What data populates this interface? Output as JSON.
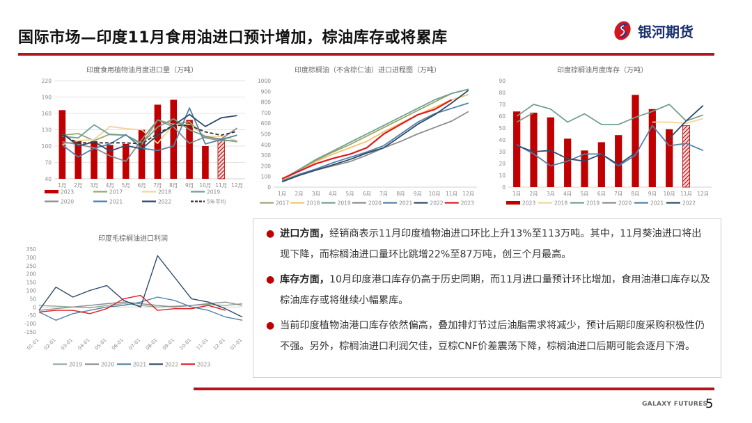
{
  "header": {
    "title": "国际市场—印度11月食用油进口预计增加，棕油库存或将累库",
    "brand_name": "银河期货",
    "accent_color": "#b3141f"
  },
  "footer": {
    "brand": "GALAXY FUTURES",
    "page_number": "5"
  },
  "text_panel": {
    "bullets": [
      {
        "bold": "进口方面，",
        "text": "经销商表示11月印度植物油进口环比上升13%至113万吨。其中，11月葵油进口将出现下降，而棕榈油进口量环比跳增22%至87万吨，创三个月最高。"
      },
      {
        "bold": "库存方面，",
        "text": "10月印度港口库存仍高于历史同期，而11月进口量预计环比增加，食用油港口库存以及棕油库存或将继续小幅累库。"
      },
      {
        "bold": "",
        "text": "当前印度植物油港口库存依然偏高，叠加排灯节过后油脂需求将减少，预计后期印度采购积极性仍不强。另外，棕榈油进口利润欠佳，豆棕CNF价差震荡下降，棕榈油进口后期可能会逐月下滑。"
      }
    ]
  },
  "chart_data": [
    {
      "id": "chart1",
      "type": "bar+line",
      "title": "印度食用植物油月度进口量（万吨）",
      "categories": [
        "1月",
        "2月",
        "3月",
        "4月",
        "5月",
        "6月",
        "7月",
        "8月",
        "9月",
        "10月",
        "11月",
        "12月"
      ],
      "ylim": [
        40,
        220
      ],
      "yticks": [
        40,
        70,
        100,
        130,
        160,
        190,
        220
      ],
      "grid": true,
      "legend_position": "bottom",
      "bars": {
        "name": "2023",
        "values": [
          166,
          110,
          109,
          102,
          104,
          130,
          176,
          185,
          148,
          100,
          113,
          null
        ],
        "forecast_index": 10,
        "color": "#c00000"
      },
      "series": [
        {
          "name": "2017",
          "color": "#9aa66e",
          "values": [
            120,
            123,
            110,
            122,
            120,
            103,
            148,
            140,
            145,
            115,
            110,
            110
          ]
        },
        {
          "name": "2018",
          "color": "#f2d49a",
          "values": [
            103,
            110,
            112,
            136,
            132,
            130,
            105,
            140,
            140,
            118,
            118,
            110
          ]
        },
        {
          "name": "2019",
          "color": "#6fa08f",
          "values": [
            118,
            115,
            139,
            121,
            120,
            105,
            135,
            150,
            130,
            118,
            112,
            108
          ]
        },
        {
          "name": "2020",
          "color": "#8c8c8c",
          "values": [
            108,
            103,
            97,
            82,
            72,
            112,
            148,
            135,
            105,
            117,
            113,
            133
          ]
        },
        {
          "name": "2021",
          "color": "#4f81a8",
          "values": [
            102,
            80,
            96,
            104,
            121,
            96,
            92,
            100,
            170,
            104,
            112,
            120
          ]
        },
        {
          "name": "2022",
          "color": "#2e4a6b",
          "values": [
            124,
            100,
            108,
            91,
            101,
            95,
            120,
            138,
            158,
            136,
            152,
            156
          ]
        },
        {
          "name": "5年平均",
          "color": "#333333",
          "dashed": true,
          "values": [
            120,
            106,
            106,
            106,
            106,
            104,
            123,
            138,
            138,
            126,
            120,
            127
          ]
        }
      ]
    },
    {
      "id": "chart2",
      "type": "line",
      "title": "印度棕榈油（不含棕仁油）进口进程图（万吨）",
      "categories": [
        "1月",
        "2月",
        "3月",
        "4月",
        "5月",
        "6月",
        "7月",
        "8月",
        "9月",
        "10月",
        "11月",
        "12月"
      ],
      "ylim": [
        0,
        1000
      ],
      "yticks": [
        0,
        100,
        200,
        300,
        400,
        500,
        600,
        700,
        800,
        900,
        1000
      ],
      "grid": false,
      "legend_position": "bottom",
      "series": [
        {
          "name": "2017",
          "color": "#9aa66e",
          "values": [
            70,
            160,
            250,
            330,
            400,
            480,
            560,
            640,
            720,
            800,
            880,
            920
          ]
        },
        {
          "name": "2018",
          "color": "#f2c46a",
          "values": [
            65,
            150,
            240,
            310,
            370,
            430,
            520,
            600,
            680,
            750,
            820,
            870
          ]
        },
        {
          "name": "2019",
          "color": "#6fa08f",
          "values": [
            75,
            165,
            260,
            340,
            420,
            500,
            580,
            660,
            740,
            820,
            880,
            920
          ]
        },
        {
          "name": "2020",
          "color": "#8c8c8c",
          "values": [
            60,
            120,
            160,
            200,
            240,
            300,
            370,
            430,
            500,
            560,
            620,
            710
          ]
        },
        {
          "name": "2021",
          "color": "#4f81a8",
          "values": [
            55,
            120,
            170,
            230,
            280,
            330,
            390,
            500,
            610,
            690,
            740,
            790
          ]
        },
        {
          "name": "2022",
          "color": "#2e4a6b",
          "values": [
            50,
            110,
            160,
            210,
            260,
            320,
            370,
            480,
            590,
            680,
            790,
            910
          ]
        },
        {
          "name": "2023",
          "color": "#e0191f",
          "values": [
            80,
            150,
            220,
            270,
            310,
            370,
            500,
            590,
            680,
            730,
            820,
            null
          ],
          "arrows": true
        }
      ]
    },
    {
      "id": "chart3",
      "type": "bar+line",
      "title": "印度棕榈油月度库存（万吨）",
      "categories": [
        "1月",
        "2月",
        "3月",
        "4月",
        "5月",
        "6月",
        "7月",
        "8月",
        "9月",
        "10月",
        "11月",
        "12月"
      ],
      "ylim": [
        0,
        90
      ],
      "yticks": [
        0,
        10,
        20,
        30,
        40,
        50,
        60,
        70,
        80,
        90
      ],
      "grid": false,
      "legend_position": "bottom",
      "bars": {
        "name": "2023",
        "values": [
          64,
          63,
          59,
          41,
          31,
          38,
          44,
          78,
          66,
          49,
          52,
          null
        ],
        "forecast_index": 10,
        "color": "#c00000"
      },
      "series": [
        {
          "name": "2018",
          "color": "#f2d49a",
          "values": [
            null,
            null,
            null,
            null,
            null,
            null,
            null,
            null,
            55,
            55,
            54,
            58
          ]
        },
        {
          "name": "2019",
          "color": "#6fa08f",
          "values": [
            60,
            70,
            66,
            55,
            62,
            53,
            53,
            59,
            64,
            70,
            56,
            61
          ]
        },
        {
          "name": "2020",
          "color": "#8c8c8c",
          "values": [
            55,
            63,
            null,
            null,
            null,
            null,
            null,
            null,
            null,
            null,
            null,
            null
          ]
        },
        {
          "name": "2021",
          "color": "#4f81a8",
          "values": [
            36,
            28,
            18,
            22,
            28,
            28,
            18,
            27,
            52,
            35,
            37,
            31
          ]
        },
        {
          "name": "2022",
          "color": "#2e4a6b",
          "values": [
            35,
            30,
            31,
            24,
            22,
            28,
            19,
            29,
            null,
            41,
            56,
            69
          ]
        }
      ]
    },
    {
      "id": "chart4",
      "type": "line",
      "title": "印度毛棕榈油进口利润",
      "categories": [
        "01-01",
        "02-01",
        "03-01",
        "04-01",
        "05-01",
        "06-01",
        "07-01",
        "08-01",
        "09-01",
        "10-01",
        "11-01",
        "12-01",
        "01-01"
      ],
      "ylim": [
        -150,
        350
      ],
      "yticks": [
        -150,
        -100,
        -50,
        0,
        50,
        100,
        150,
        200,
        250,
        300,
        350
      ],
      "grid": false,
      "legend_position": "bottom",
      "series": [
        {
          "name": "2019",
          "color": "#8fae9c",
          "values": [
            10,
            5,
            0,
            -5,
            10,
            20,
            10,
            0,
            5,
            10,
            15,
            10,
            20
          ]
        },
        {
          "name": "2020",
          "color": "#8c8c8c",
          "values": [
            -20,
            -10,
            0,
            10,
            20,
            30,
            20,
            10,
            0,
            10,
            20,
            30,
            10
          ]
        },
        {
          "name": "2021",
          "color": "#4f81a8",
          "values": [
            -30,
            -80,
            -40,
            -20,
            0,
            10,
            30,
            60,
            40,
            0,
            -20,
            -60,
            -80
          ]
        },
        {
          "name": "2022",
          "color": "#2e4a6b",
          "values": [
            -20,
            120,
            60,
            100,
            130,
            40,
            0,
            310,
            180,
            50,
            30,
            -10,
            -60
          ]
        },
        {
          "name": "2023",
          "color": "#e0191f",
          "values": [
            -30,
            -20,
            -20,
            -40,
            -10,
            50,
            70,
            -20,
            -10,
            -10,
            10,
            -20,
            null
          ]
        }
      ]
    }
  ]
}
